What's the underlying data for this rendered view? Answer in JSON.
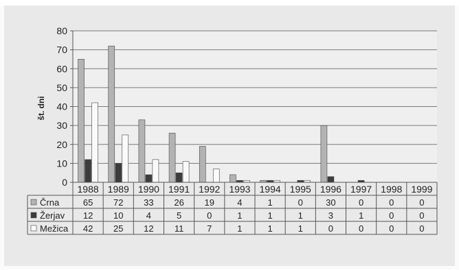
{
  "chart_data": {
    "type": "bar",
    "title": "",
    "xlabel": "",
    "ylabel": "št. dni",
    "ylim": [
      0,
      80
    ],
    "yticks": [
      0,
      10,
      20,
      30,
      40,
      50,
      60,
      70,
      80
    ],
    "grid": true,
    "categories": [
      "1988",
      "1989",
      "1990",
      "1991",
      "1992",
      "1993",
      "1994",
      "1995",
      "1996",
      "1997",
      "1998",
      "1999"
    ],
    "series": [
      {
        "name": "Črna",
        "color": "#b3b3b3",
        "values": [
          65,
          72,
          33,
          26,
          19,
          4,
          1,
          0,
          30,
          0,
          0,
          0
        ]
      },
      {
        "name": "Žerjav",
        "color": "#3c3c3c",
        "values": [
          12,
          10,
          4,
          5,
          0,
          1,
          1,
          1,
          3,
          1,
          0,
          0
        ]
      },
      {
        "name": "Mežica",
        "color": "#fafafa",
        "values": [
          42,
          25,
          12,
          11,
          7,
          1,
          1,
          1,
          0,
          0,
          0,
          0
        ]
      }
    ],
    "legend": "data-table"
  }
}
